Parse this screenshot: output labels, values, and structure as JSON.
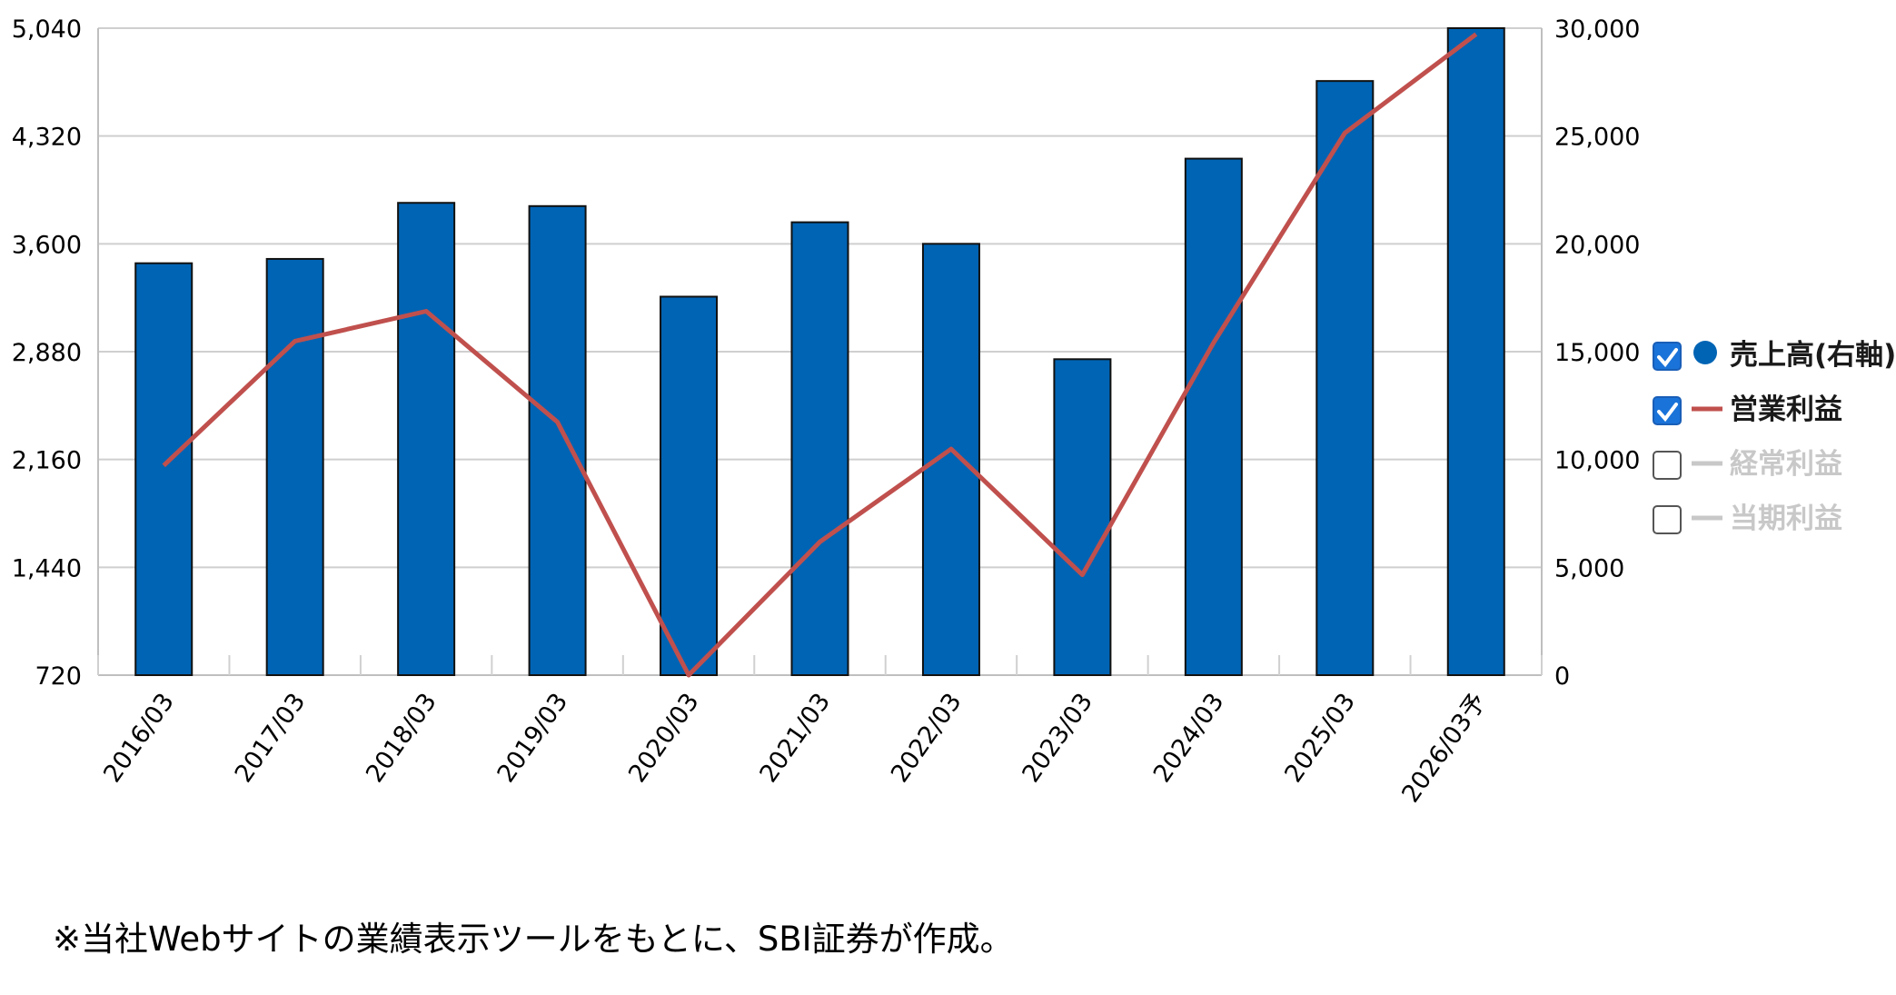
{
  "chart_data": {
    "type": "bar",
    "categories": [
      "2016/03",
      "2017/03",
      "2018/03",
      "2019/03",
      "2020/03",
      "2021/03",
      "2022/03",
      "2023/03",
      "2024/03",
      "2025/03",
      "2026/03予"
    ],
    "series": [
      {
        "name": "売上高(右軸)",
        "chart_type": "bar",
        "axis": "right",
        "color": "#0064b4",
        "values": [
          19100,
          19300,
          21900,
          21750,
          17550,
          21000,
          20000,
          14650,
          23950,
          27550,
          30000
        ]
      },
      {
        "name": "営業利益",
        "chart_type": "line",
        "axis": "left",
        "color": "#c0504d",
        "values": [
          2120,
          2950,
          3150,
          2410,
          720,
          1610,
          2230,
          1390,
          2940,
          4340,
          5000
        ]
      }
    ],
    "left_axis": {
      "ylim": [
        720,
        5040
      ],
      "ticks": [
        "5,040",
        "4,320",
        "3,600",
        "2,880",
        "2,160",
        "1,440",
        "720"
      ]
    },
    "right_axis": {
      "ylim": [
        0,
        30000
      ],
      "ticks": [
        "30,000",
        "25,000",
        "20,000",
        "15,000",
        "10,000",
        "5,000",
        "0"
      ]
    },
    "grid": true,
    "legend": {
      "placement": "right",
      "items": [
        {
          "label": "売上高(右軸)",
          "checked": true,
          "color": "#0064b4",
          "marker": "circle"
        },
        {
          "label": "営業利益",
          "checked": true,
          "color": "#c0504d",
          "marker": "line"
        },
        {
          "label": "経常利益",
          "checked": false,
          "color": "#c8c8c8",
          "marker": "line"
        },
        {
          "label": "当期利益",
          "checked": false,
          "color": "#c8c8c8",
          "marker": "line"
        }
      ]
    }
  },
  "footnote": "※当社Webサイトの業績表示ツールをもとに、SBI証券が作成。"
}
